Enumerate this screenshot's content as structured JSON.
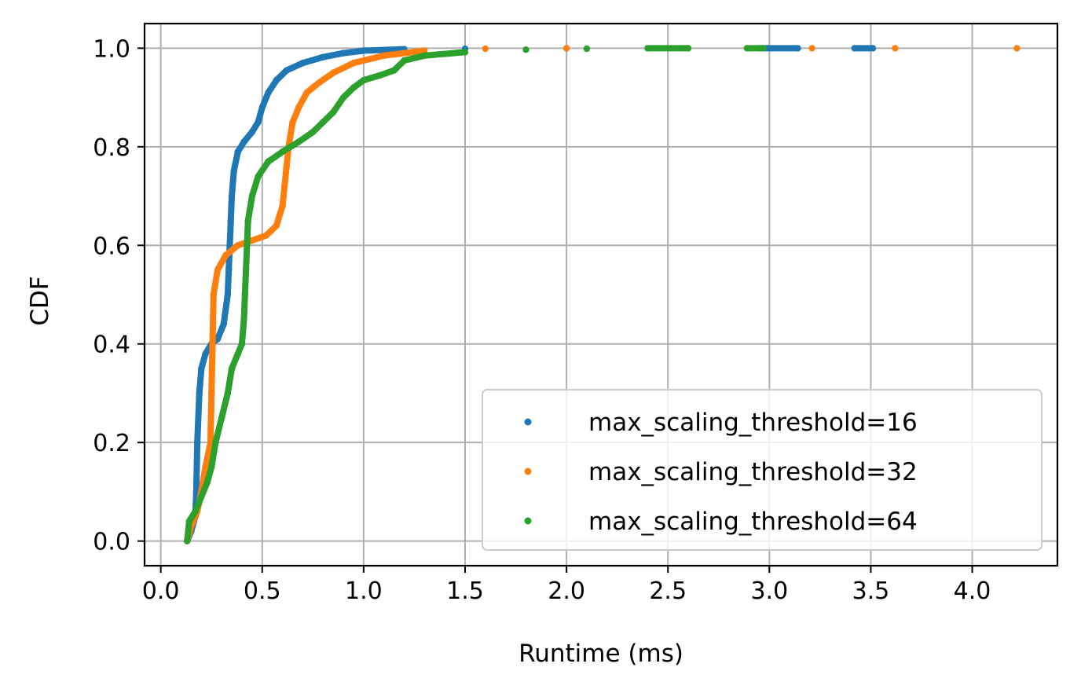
{
  "chart_data": {
    "type": "scatter",
    "title": "",
    "xlabel": "Runtime (ms)",
    "ylabel": "CDF",
    "xlim": [
      -0.08,
      4.42
    ],
    "ylim": [
      -0.05,
      1.05
    ],
    "xticks": [
      0.0,
      0.5,
      1.0,
      1.5,
      2.0,
      2.5,
      3.0,
      3.5,
      4.0
    ],
    "xtick_labels": [
      "0.0",
      "0.5",
      "1.0",
      "1.5",
      "2.0",
      "2.5",
      "3.0",
      "3.5",
      "4.0"
    ],
    "yticks": [
      0.0,
      0.2,
      0.4,
      0.6,
      0.8,
      1.0
    ],
    "ytick_labels": [
      "0.0",
      "0.2",
      "0.4",
      "0.6",
      "0.8",
      "1.0"
    ],
    "grid": true,
    "legend_position": "lower-right",
    "series": [
      {
        "name": "max_scaling_threshold=16",
        "color": "#1f77b4",
        "points": [
          [
            0.13,
            0.0
          ],
          [
            0.15,
            0.02
          ],
          [
            0.17,
            0.05
          ],
          [
            0.175,
            0.1
          ],
          [
            0.18,
            0.2
          ],
          [
            0.19,
            0.3
          ],
          [
            0.2,
            0.35
          ],
          [
            0.22,
            0.38
          ],
          [
            0.25,
            0.4
          ],
          [
            0.28,
            0.41
          ],
          [
            0.31,
            0.44
          ],
          [
            0.33,
            0.5
          ],
          [
            0.335,
            0.55
          ],
          [
            0.34,
            0.6
          ],
          [
            0.345,
            0.65
          ],
          [
            0.35,
            0.7
          ],
          [
            0.36,
            0.75
          ],
          [
            0.38,
            0.79
          ],
          [
            0.41,
            0.81
          ],
          [
            0.45,
            0.83
          ],
          [
            0.48,
            0.85
          ],
          [
            0.5,
            0.88
          ],
          [
            0.53,
            0.91
          ],
          [
            0.57,
            0.935
          ],
          [
            0.62,
            0.955
          ],
          [
            0.7,
            0.97
          ],
          [
            0.8,
            0.982
          ],
          [
            0.9,
            0.99
          ],
          [
            1.0,
            0.995
          ],
          [
            1.2,
            0.998
          ],
          [
            1.5,
            0.999
          ],
          [
            2.0,
            1.0
          ],
          [
            2.45,
            1.0
          ],
          [
            2.95,
            1.0
          ],
          [
            3.14,
            1.0
          ],
          [
            3.42,
            1.0
          ],
          [
            3.51,
            1.0
          ]
        ]
      },
      {
        "name": "max_scaling_threshold=32",
        "color": "#ff7f0e",
        "points": [
          [
            0.13,
            0.0
          ],
          [
            0.15,
            0.03
          ],
          [
            0.18,
            0.06
          ],
          [
            0.2,
            0.1
          ],
          [
            0.22,
            0.15
          ],
          [
            0.245,
            0.2
          ],
          [
            0.25,
            0.3
          ],
          [
            0.255,
            0.4
          ],
          [
            0.26,
            0.5
          ],
          [
            0.28,
            0.55
          ],
          [
            0.32,
            0.58
          ],
          [
            0.38,
            0.6
          ],
          [
            0.45,
            0.61
          ],
          [
            0.52,
            0.62
          ],
          [
            0.57,
            0.64
          ],
          [
            0.6,
            0.68
          ],
          [
            0.61,
            0.72
          ],
          [
            0.62,
            0.76
          ],
          [
            0.63,
            0.8
          ],
          [
            0.65,
            0.85
          ],
          [
            0.68,
            0.88
          ],
          [
            0.72,
            0.91
          ],
          [
            0.78,
            0.93
          ],
          [
            0.85,
            0.95
          ],
          [
            0.95,
            0.97
          ],
          [
            1.1,
            0.985
          ],
          [
            1.3,
            0.995
          ],
          [
            1.6,
            0.999
          ],
          [
            2.0,
            1.0
          ],
          [
            2.58,
            1.0
          ],
          [
            3.21,
            1.0
          ],
          [
            3.62,
            1.0
          ],
          [
            4.22,
            1.0
          ]
        ]
      },
      {
        "name": "max_scaling_threshold=64",
        "color": "#2ca02c",
        "points": [
          [
            0.13,
            0.0
          ],
          [
            0.14,
            0.04
          ],
          [
            0.17,
            0.06
          ],
          [
            0.2,
            0.09
          ],
          [
            0.23,
            0.12
          ],
          [
            0.25,
            0.15
          ],
          [
            0.27,
            0.2
          ],
          [
            0.3,
            0.25
          ],
          [
            0.33,
            0.3
          ],
          [
            0.35,
            0.35
          ],
          [
            0.38,
            0.38
          ],
          [
            0.4,
            0.4
          ],
          [
            0.41,
            0.45
          ],
          [
            0.415,
            0.5
          ],
          [
            0.42,
            0.55
          ],
          [
            0.425,
            0.6
          ],
          [
            0.43,
            0.65
          ],
          [
            0.45,
            0.7
          ],
          [
            0.48,
            0.74
          ],
          [
            0.53,
            0.77
          ],
          [
            0.6,
            0.79
          ],
          [
            0.68,
            0.81
          ],
          [
            0.75,
            0.83
          ],
          [
            0.8,
            0.85
          ],
          [
            0.85,
            0.87
          ],
          [
            0.9,
            0.9
          ],
          [
            0.95,
            0.92
          ],
          [
            1.0,
            0.935
          ],
          [
            1.08,
            0.945
          ],
          [
            1.15,
            0.955
          ],
          [
            1.2,
            0.975
          ],
          [
            1.3,
            0.985
          ],
          [
            1.5,
            0.992
          ],
          [
            1.8,
            0.997
          ],
          [
            2.1,
            0.999
          ],
          [
            2.4,
            1.0
          ],
          [
            2.6,
            1.0
          ],
          [
            2.89,
            1.0
          ],
          [
            2.97,
            1.0
          ]
        ]
      }
    ]
  }
}
